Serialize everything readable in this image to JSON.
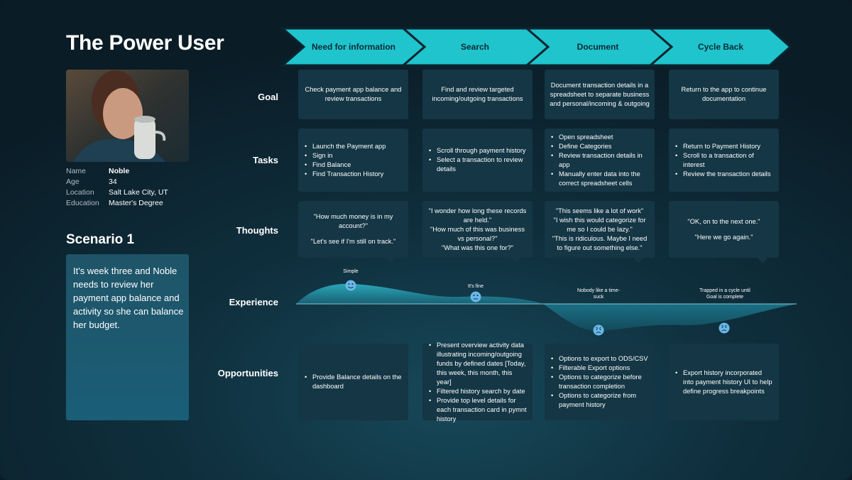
{
  "persona": {
    "title": "The Power User",
    "facts": [
      {
        "label": "Name",
        "value": "Noble"
      },
      {
        "label": "Age",
        "value": "34"
      },
      {
        "label": "Location",
        "value": "Salt Lake City, UT"
      },
      {
        "label": "Education",
        "value": "Master's Degree"
      }
    ]
  },
  "scenario": {
    "heading": "Scenario 1",
    "text": "It's week three and Noble needs to review her payment app balance and activity so she can balance her budget."
  },
  "stages": [
    "Need for information",
    "Search",
    "Document",
    "Cycle Back"
  ],
  "row_labels": {
    "goal": "Goal",
    "tasks": "Tasks",
    "thoughts": "Thoughts",
    "experience": "Experience",
    "opportunities": "Opportunities"
  },
  "goals": [
    "Check payment app balance and review transactions",
    "Find and review targeted incoming/outgoing transactions",
    "Document transaction details in a spreadsheet to separate business and personal/incoming & outgoing",
    "Return to the app to continue documentation"
  ],
  "tasks": [
    [
      "Launch the Payment app",
      "Sign in",
      "Find Balance",
      "Find Transaction History"
    ],
    [
      "Scroll through payment history",
      "Select a transaction to review details"
    ],
    [
      "Open spreadsheet",
      "Define Categories",
      "Review transaction details in app",
      "Manually enter data into the correct spreadsheet cells"
    ],
    [
      "Return to Payment History",
      "Scroll to a transaction of interest",
      "Review the transaction details"
    ]
  ],
  "thoughts": [
    [
      "\"How much money is in my account?\"",
      "",
      "\"Let's see if I'm still on track.\""
    ],
    [
      "\"I wonder how long these records are held.\"",
      "\"How much of this was business vs personal?\"",
      "\"What was this one for?\""
    ],
    [
      "\"This seems like a lot of work\"",
      "\"I wish this would categorize for me so I could be lazy.\"",
      "\"This is ridiculous. Maybe I need to figure out something else.\""
    ],
    [
      "\"OK, on to the next one.\"",
      "",
      "\"Here we go again.\""
    ]
  ],
  "experience": [
    {
      "label": "Simple",
      "mood": "happy",
      "level": 0.85
    },
    {
      "label": "It's fine",
      "mood": "neutral",
      "level": 0.55
    },
    {
      "label": "Nobody like a time-suck",
      "mood": "angry",
      "level": -0.85
    },
    {
      "label": "Trapped in a cycle until Goal is complete",
      "mood": "angry",
      "level": -0.75
    }
  ],
  "opportunities": [
    [
      "Provide Balance details on the dashboard"
    ],
    [
      "Present overview activity data illustrating incoming/outgoing funds by defined dates [Today, this week, this month, this year]",
      "Filtered history search by date",
      "Provide top level details for each transaction card in pymnt history"
    ],
    [
      "Options to export to ODS/CSV",
      "Filterable Export options",
      "Options to categorize before transaction completion",
      "Options to categorize from payment history"
    ],
    [
      "Export history incorporated into payment history UI to help define progress breakpoints"
    ]
  ],
  "colors": {
    "accent": "#1fc4cc",
    "card": "#143645",
    "emoji": "#6ab7e8"
  }
}
